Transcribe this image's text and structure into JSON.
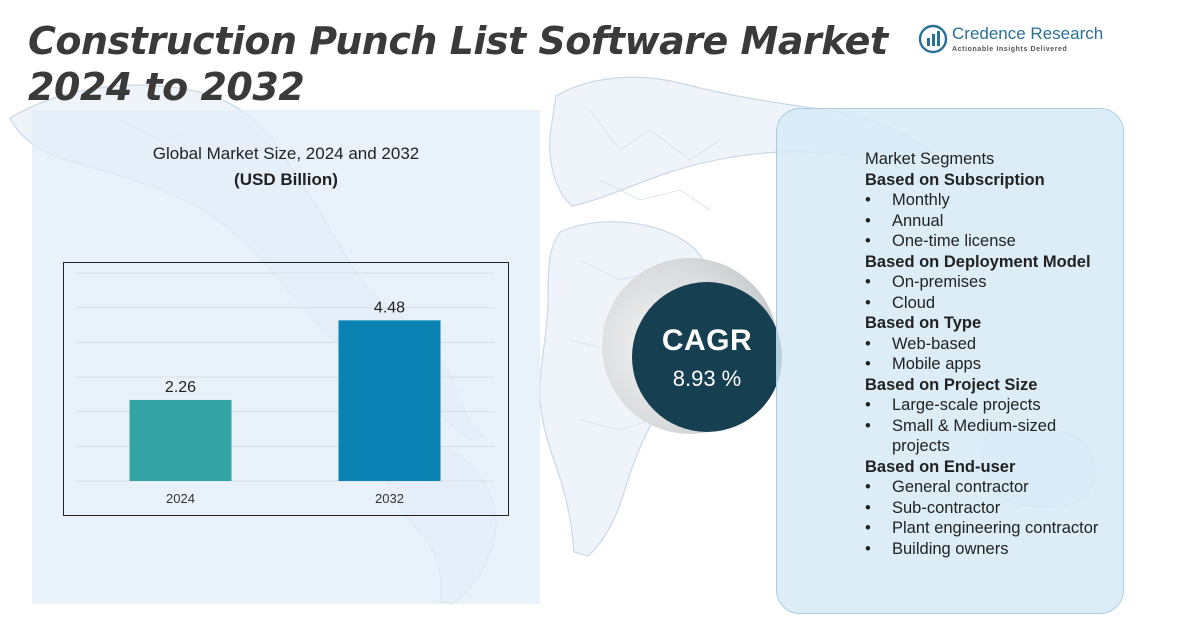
{
  "title": "Construction Punch List Software Market 2024 to 2032",
  "logo": {
    "name": "Credence Research",
    "tagline": "Actionable Insights Delivered"
  },
  "chart_title": "Global Market Size,  2024 and 2032",
  "chart_unit": "(USD Billion)",
  "chart_data": {
    "type": "bar",
    "categories": [
      "2024",
      "2032"
    ],
    "values": [
      2.26,
      4.48
    ],
    "data_labels": [
      "2.26",
      "4.48"
    ],
    "colors": [
      "#33a3a3",
      "#0a82b3"
    ],
    "title": "Global Market Size,  2024 and 2032",
    "ylabel": "(USD Billion)",
    "ylim": [
      0,
      5.8
    ],
    "grid": true
  },
  "cagr": {
    "label": "CAGR",
    "value": "8.93 %"
  },
  "segments": {
    "header": "Market Segments",
    "groups": [
      {
        "heading": "Based on Subscription",
        "items": [
          "Monthly",
          "Annual",
          "One-time license"
        ]
      },
      {
        "heading": "Based on Deployment Model",
        "items": [
          "On-premises",
          "Cloud"
        ]
      },
      {
        "heading": "Based on Type",
        "items": [
          "Web-based",
          "Mobile apps"
        ]
      },
      {
        "heading": "Based on Project Size",
        "items": [
          "Large-scale projects",
          "Small & Medium-sized projects"
        ]
      },
      {
        "heading": "Based on End-user",
        "items": [
          "General contractor",
          "Sub-contractor",
          "Plant engineering contractor",
          "Building owners"
        ]
      }
    ]
  },
  "colors": {
    "title": "#3a3a3a",
    "panel": "#e2eef8",
    "cagr_circle": "#173f52",
    "segment_panel": "#d6eaf6"
  }
}
